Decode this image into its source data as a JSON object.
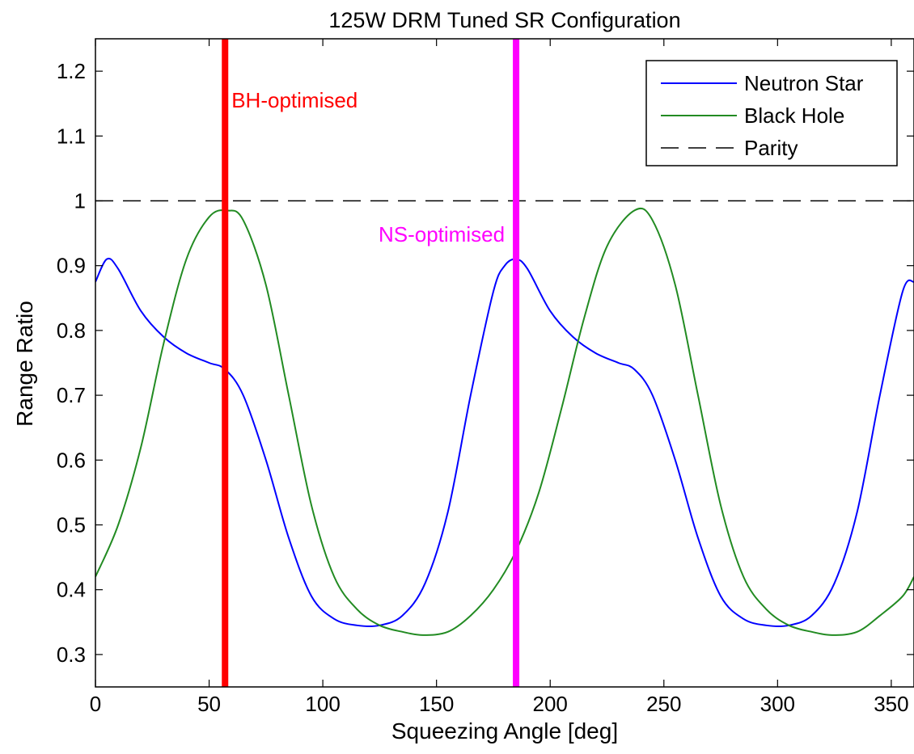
{
  "chart_data": {
    "type": "line",
    "title": "125W DRM Tuned SR Configuration",
    "xlabel": "Squeezing Angle [deg]",
    "ylabel": "Range Ratio",
    "xlim": [
      0,
      360
    ],
    "ylim": [
      0.25,
      1.25
    ],
    "xticks": [
      0,
      50,
      100,
      150,
      200,
      250,
      300,
      350
    ],
    "yticks": [
      0.3,
      0.4,
      0.5,
      0.6,
      0.7,
      0.8,
      0.9,
      1,
      1.1,
      1.2
    ],
    "grid": false,
    "legend_position": "top-right",
    "series": [
      {
        "name": "Neutron Star",
        "color": "#0000ff",
        "style": "solid",
        "x": [
          0,
          5,
          10,
          20,
          30,
          40,
          50,
          57,
          65,
          75,
          85,
          95,
          105,
          115,
          125,
          135,
          145,
          155,
          165,
          175,
          180,
          185,
          190,
          200,
          210,
          220,
          230,
          237,
          245,
          255,
          265,
          275,
          285,
          295,
          305,
          315,
          325,
          335,
          345,
          355,
          360
        ],
        "y": [
          0.875,
          0.91,
          0.895,
          0.83,
          0.79,
          0.765,
          0.75,
          0.74,
          0.7,
          0.6,
          0.48,
          0.39,
          0.355,
          0.345,
          0.345,
          0.36,
          0.41,
          0.52,
          0.7,
          0.86,
          0.9,
          0.91,
          0.895,
          0.83,
          0.79,
          0.765,
          0.75,
          0.74,
          0.7,
          0.6,
          0.48,
          0.39,
          0.355,
          0.345,
          0.345,
          0.36,
          0.41,
          0.52,
          0.7,
          0.86,
          0.875
        ]
      },
      {
        "name": "Black Hole",
        "color": "#228b22",
        "style": "solid",
        "x": [
          0,
          10,
          20,
          30,
          40,
          50,
          58,
          65,
          75,
          85,
          95,
          105,
          115,
          125,
          135,
          144,
          155,
          165,
          175,
          185,
          195,
          205,
          215,
          225,
          237,
          245,
          255,
          265,
          275,
          285,
          295,
          305,
          315,
          324,
          335,
          345,
          355,
          360
        ],
        "y": [
          0.42,
          0.5,
          0.62,
          0.78,
          0.91,
          0.975,
          0.985,
          0.97,
          0.87,
          0.7,
          0.53,
          0.42,
          0.37,
          0.345,
          0.335,
          0.33,
          0.335,
          0.36,
          0.4,
          0.46,
          0.55,
          0.68,
          0.82,
          0.93,
          0.985,
          0.97,
          0.87,
          0.7,
          0.53,
          0.42,
          0.37,
          0.345,
          0.335,
          0.33,
          0.335,
          0.36,
          0.39,
          0.42
        ]
      },
      {
        "name": "Parity",
        "color": "#000000",
        "style": "dashed",
        "x": [
          0,
          360
        ],
        "y": [
          1,
          1
        ]
      }
    ],
    "vlines": [
      {
        "x": 57,
        "label": "BH-optimised",
        "color": "#ff0000"
      },
      {
        "x": 185,
        "label": "NS-optimised",
        "color": "#ff00ff"
      }
    ]
  }
}
